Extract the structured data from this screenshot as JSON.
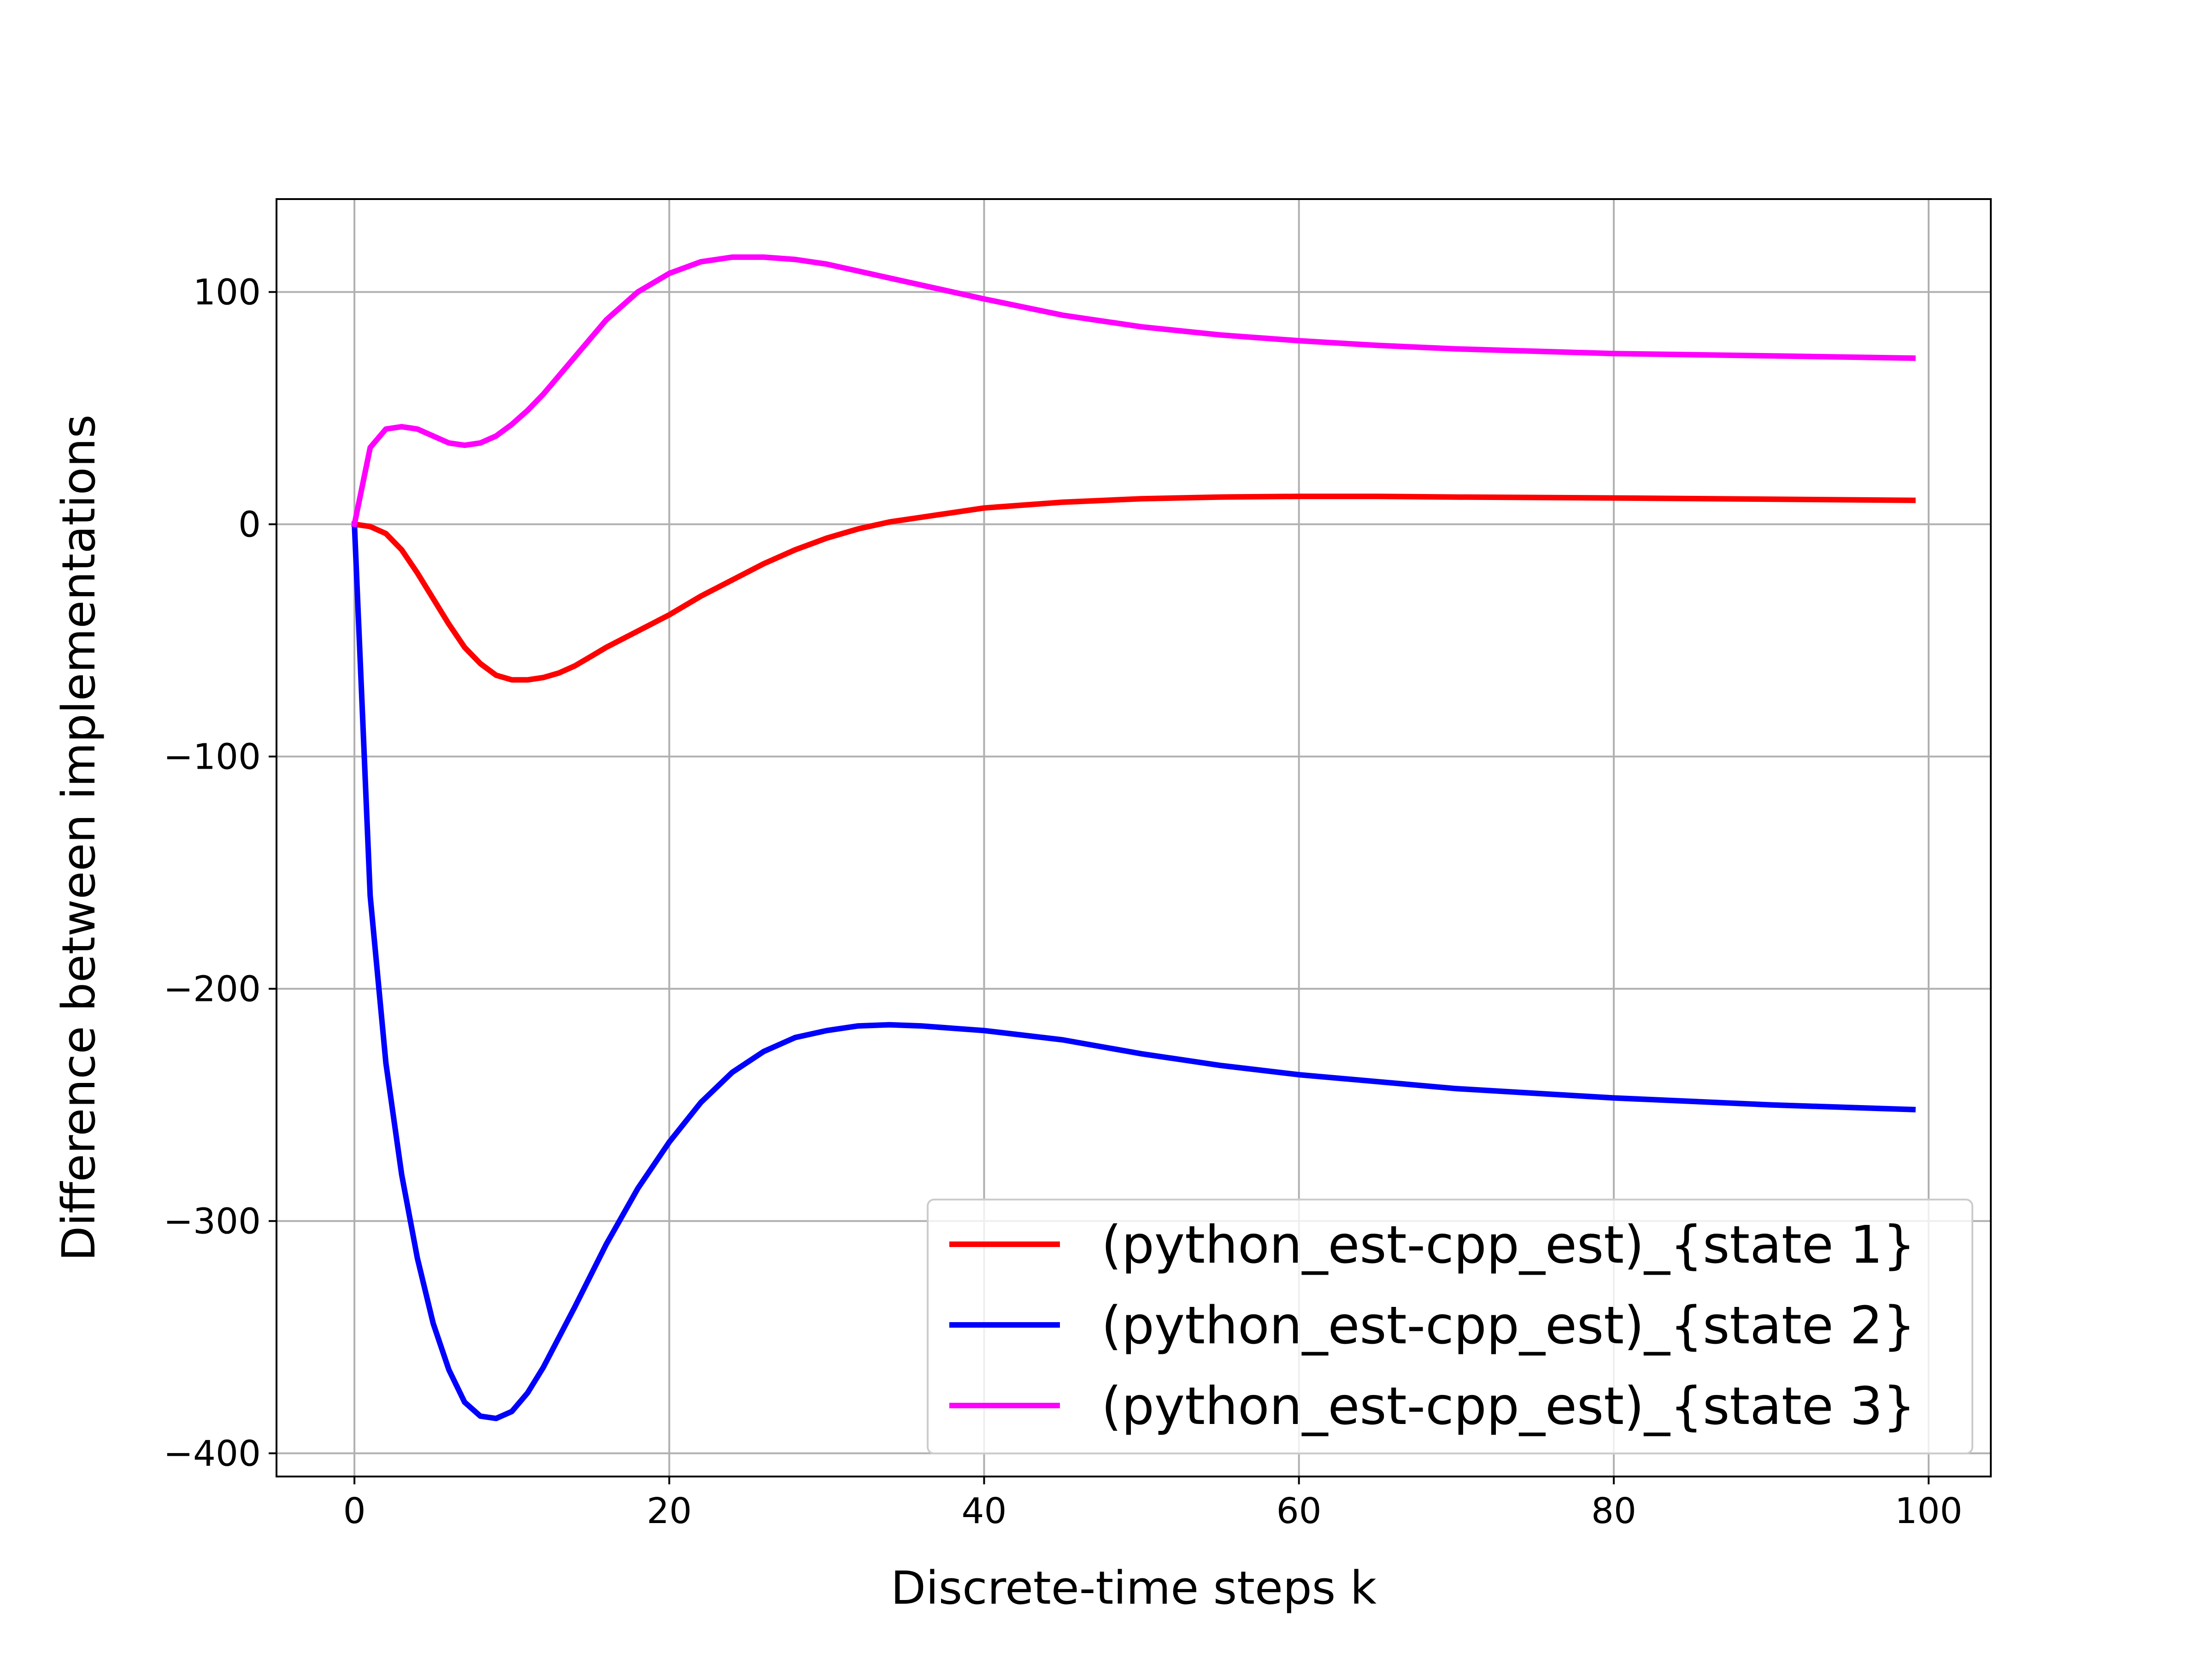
{
  "chart_data": {
    "type": "line",
    "title": "",
    "xlabel": "Discrete-time steps k",
    "ylabel": "Difference between implementations",
    "xlim": [
      -4.95,
      103.95
    ],
    "ylim": [
      -410,
      140
    ],
    "x_ticks": [
      0,
      20,
      40,
      60,
      80,
      100
    ],
    "y_ticks": [
      -400,
      -300,
      -200,
      -100,
      0,
      100
    ],
    "x_tick_labels": [
      "0",
      "20",
      "40",
      "60",
      "80",
      "100"
    ],
    "y_tick_labels": [
      "−400",
      "−300",
      "−200",
      "−100",
      "0",
      "100"
    ],
    "grid": true,
    "legend_position": "lower-right",
    "series": [
      {
        "name": "(python_est-cpp_est)_{state 1}",
        "color": "#ff0000",
        "x": [
          0,
          1,
          2,
          3,
          4,
          5,
          6,
          7,
          8,
          9,
          10,
          11,
          12,
          13,
          14,
          15,
          16,
          18,
          20,
          22,
          24,
          26,
          28,
          30,
          32,
          34,
          36,
          38,
          40,
          45,
          50,
          55,
          60,
          65,
          70,
          80,
          90,
          99
        ],
        "y": [
          0,
          -1,
          -4,
          -11,
          -21,
          -32,
          -43,
          -53,
          -60,
          -65,
          -67,
          -67,
          -66,
          -64,
          -61,
          -57,
          -53,
          -46,
          -39,
          -31,
          -24,
          -17,
          -11,
          -6,
          -2,
          1,
          3,
          5,
          7,
          9.5,
          11,
          11.7,
          12,
          12,
          11.7,
          11.3,
          10.8,
          10.3
        ]
      },
      {
        "name": "(python_est-cpp_est)_{state 2}",
        "color": "#0000ff",
        "x": [
          0,
          1,
          2,
          3,
          4,
          5,
          6,
          7,
          8,
          9,
          10,
          11,
          12,
          14,
          16,
          18,
          20,
          22,
          24,
          26,
          28,
          30,
          32,
          34,
          36,
          38,
          40,
          45,
          50,
          55,
          60,
          65,
          70,
          80,
          90,
          99
        ],
        "y": [
          0,
          -160,
          -232,
          -280,
          -316,
          -344,
          -364,
          -378,
          -384,
          -385,
          -382,
          -374,
          -363,
          -337,
          -310,
          -286,
          -266,
          -249,
          -236,
          -227,
          -221,
          -218,
          -216,
          -215.5,
          -216,
          -217,
          -218,
          -222,
          -228,
          -233,
          -237,
          -240,
          -243,
          -247,
          -250,
          -252
        ]
      },
      {
        "name": "(python_est-cpp_est)_{state 3}",
        "color": "#ff00ff",
        "x": [
          0,
          1,
          2,
          3,
          4,
          5,
          6,
          7,
          8,
          9,
          10,
          11,
          12,
          14,
          16,
          18,
          20,
          22,
          24,
          26,
          28,
          30,
          32,
          34,
          36,
          38,
          40,
          45,
          50,
          55,
          60,
          65,
          70,
          80,
          90,
          99
        ],
        "y": [
          0,
          33,
          41,
          42,
          41,
          38,
          35,
          34,
          35,
          38,
          43,
          49,
          56,
          72,
          88,
          100,
          108,
          113,
          115,
          115,
          114,
          112,
          109,
          106,
          103,
          100,
          97,
          90,
          85,
          81.5,
          79,
          77,
          75.5,
          73.5,
          72.5,
          71.5
        ]
      }
    ]
  }
}
